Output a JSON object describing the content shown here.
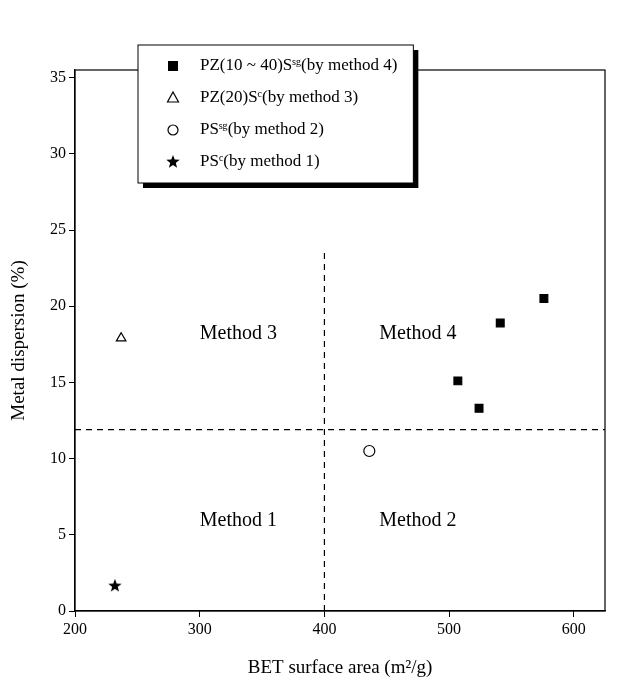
{
  "chart_data": {
    "type": "scatter",
    "x_label": "BET surface area (m²/g)",
    "y_label": "Metal dispersion (%)",
    "xlim": [
      200,
      625
    ],
    "xticks": [
      200,
      300,
      400,
      500,
      600
    ],
    "ylim": [
      0,
      35.5
    ],
    "yticks": [
      0,
      5,
      10,
      15,
      20,
      25,
      30,
      35
    ],
    "grid": false,
    "legend": "top",
    "series": [
      {
        "name": "PZ(10 ~ 40)Sˢᵍ(by method 4)",
        "color": "#000000",
        "marker": "square",
        "x": [
          507,
          524,
          541,
          576
        ],
        "values": [
          15.1,
          13.3,
          18.9,
          20.5
        ]
      },
      {
        "name": "PZ(20)Sᶜ(by method 3)",
        "color": "#000000",
        "marker": "open_triangle",
        "x": [
          237
        ],
        "values": [
          17.9
        ]
      },
      {
        "name": "PSˢᵍ(by method 2)",
        "color": "#000000",
        "marker": "open_circle",
        "x": [
          436
        ],
        "values": [
          10.5
        ]
      },
      {
        "name": "PSᶜ(by method 1)",
        "color": "#000000",
        "marker": "star",
        "x": [
          232
        ],
        "values": [
          1.7
        ]
      }
    ],
    "lines": [
      {
        "x": [
          400,
          400
        ],
        "y": [
          0,
          23.5
        ],
        "line_style": "dashed"
      },
      {
        "x": [
          200,
          625
        ],
        "y": [
          11.9,
          11.9
        ],
        "line_style": "dashed"
      }
    ],
    "annotations": [
      {
        "text": "Method 3",
        "x": 331,
        "y": 18.2
      },
      {
        "text": "Method 4",
        "x": 475,
        "y": 18.2
      },
      {
        "text": "Method 1",
        "x": 331,
        "y": 5.9
      },
      {
        "text": "Method 2",
        "x": 475,
        "y": 5.9
      }
    ]
  }
}
